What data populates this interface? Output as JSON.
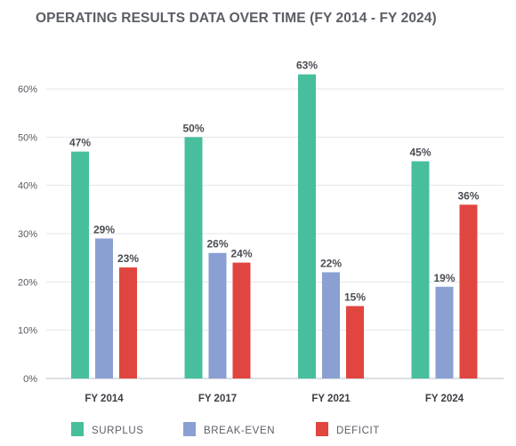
{
  "chart_data": {
    "type": "bar",
    "title": "OPERATING RESULTS DATA OVER TIME (FY 2014 - FY 2024)",
    "categories": [
      "FY 2014",
      "FY 2017",
      "FY 2021",
      "FY 2024"
    ],
    "series": [
      {
        "name": "SURPLUS",
        "color": "#47bf9c",
        "values": [
          47,
          50,
          63,
          45
        ]
      },
      {
        "name": "BREAK-EVEN",
        "color": "#8a9fd2",
        "values": [
          29,
          26,
          22,
          19
        ]
      },
      {
        "name": "DEFICIT",
        "color": "#e1453f",
        "values": [
          23,
          24,
          15,
          36
        ]
      }
    ],
    "ylim": [
      0,
      60
    ],
    "yticks": [
      "0%",
      "10%",
      "20%",
      "30%",
      "40%",
      "50%",
      "60%"
    ],
    "value_suffix": "%",
    "grid": true,
    "legend_position": "bottom-left"
  }
}
